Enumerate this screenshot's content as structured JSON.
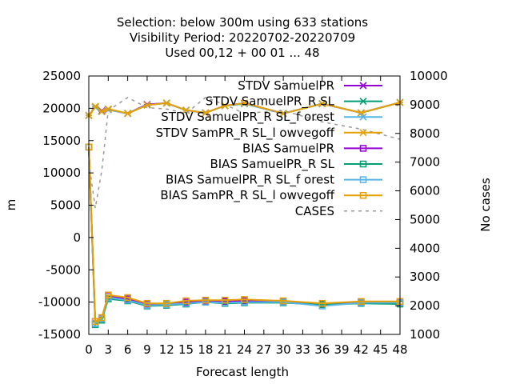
{
  "chart_data": {
    "type": "line",
    "title_lines": [
      "Selection: below 300m using    633 stations",
      "Visibility   Period: 20220702-20220709",
      "Used  00,12  + 00 01 ... 48"
    ],
    "xlabel": "Forecast length",
    "ylabel": "m",
    "y2label": "No cases",
    "xlim": [
      0,
      48
    ],
    "ylim": [
      -15000,
      25000
    ],
    "y2lim": [
      1000,
      10000
    ],
    "x_ticks": [
      "0",
      "3",
      "6",
      "9",
      "12",
      "15",
      "18",
      "21",
      "24",
      "27",
      "30",
      "33",
      "36",
      "39",
      "42",
      "45",
      "48"
    ],
    "y_ticks": [
      "-15000",
      "-10000",
      "-5000",
      "0",
      "5000",
      "10000",
      "15000",
      "20000",
      "25000"
    ],
    "y2_ticks": [
      "1000",
      "2000",
      "3000",
      "4000",
      "5000",
      "6000",
      "7000",
      "8000",
      "9000",
      "10000"
    ],
    "legend_placement": "top-right",
    "x": [
      0,
      1,
      2,
      3,
      6,
      9,
      12,
      15,
      18,
      21,
      24,
      30,
      36,
      42,
      48
    ],
    "series": [
      {
        "name": "STDV SamuelPR",
        "color": "#9400d3",
        "marker": "x",
        "dashed": false,
        "values": [
          18900,
          20200,
          19600,
          19800,
          19200,
          20600,
          20800,
          19700,
          19300,
          20400,
          20800,
          19200,
          20700,
          19300,
          20900
        ]
      },
      {
        "name": "STDV SamuelPR_R SL",
        "color": "#009e73",
        "marker": "x",
        "dashed": false,
        "values": [
          18900,
          20200,
          19500,
          19800,
          19200,
          20500,
          20800,
          19700,
          19300,
          20400,
          20700,
          19200,
          20700,
          19300,
          20900
        ]
      },
      {
        "name": "STDV SamuelPR_R SL_f orest",
        "color": "#56b4e9",
        "marker": "x",
        "dashed": false,
        "values": [
          18900,
          20200,
          19500,
          19800,
          19200,
          20500,
          20800,
          19700,
          19300,
          20400,
          20700,
          19200,
          20700,
          19300,
          20900
        ]
      },
      {
        "name": "STDV SamPR_R SL_l owvegoff",
        "color": "#e69f00",
        "marker": "x",
        "dashed": false,
        "values": [
          18900,
          20300,
          19500,
          19900,
          19200,
          20500,
          20800,
          19700,
          19300,
          20400,
          20800,
          19200,
          20700,
          19300,
          20900
        ]
      },
      {
        "name": "BIAS SamuelPR",
        "color": "#9400d3",
        "marker": "square",
        "dashed": false,
        "values": [
          14000,
          -13000,
          -12500,
          -9000,
          -9500,
          -10300,
          -10300,
          -10000,
          -9900,
          -9900,
          -9800,
          -9900,
          -10300,
          -10000,
          -10000
        ]
      },
      {
        "name": "BIAS SamuelPR_R SL",
        "color": "#009e73",
        "marker": "square",
        "dashed": false,
        "values": [
          14000,
          -13500,
          -12800,
          -9500,
          -9800,
          -10600,
          -10500,
          -10300,
          -10000,
          -10200,
          -10100,
          -10100,
          -10400,
          -10200,
          -10300
        ]
      },
      {
        "name": "BIAS SamuelPR_R SL_f orest",
        "color": "#56b4e9",
        "marker": "square",
        "dashed": false,
        "values": [
          14000,
          -13300,
          -12600,
          -9300,
          -9700,
          -10500,
          -10400,
          -10200,
          -10000,
          -10100,
          -10000,
          -10000,
          -10600,
          -10100,
          -10100
        ]
      },
      {
        "name": "BIAS SamPR_R SL_l owvegoff",
        "color": "#e69f00",
        "marker": "square",
        "dashed": false,
        "values": [
          14000,
          -13000,
          -12400,
          -8900,
          -9300,
          -10200,
          -10200,
          -9800,
          -9700,
          -9700,
          -9600,
          -9800,
          -10200,
          -9900,
          -9900
        ]
      },
      {
        "name": "CASES",
        "color": "#999999",
        "marker": "none",
        "dashed": true,
        "axis": "y2",
        "values": [
          7000,
          5400,
          6700,
          8800,
          9250,
          8900,
          8850,
          8700,
          9250,
          9000,
          8700,
          8800,
          8400,
          8150,
          7800
        ]
      }
    ]
  }
}
